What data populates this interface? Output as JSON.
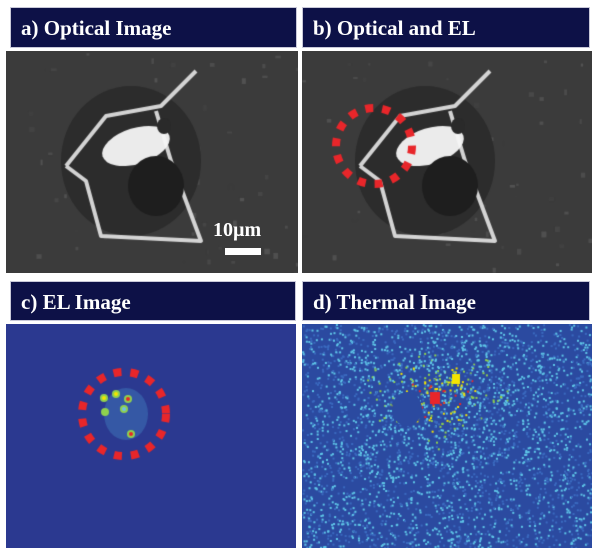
{
  "panels": [
    {
      "id": "a",
      "title": "a)  Optical Image"
    },
    {
      "id": "b",
      "title": "b)  Optical and EL"
    },
    {
      "id": "c",
      "title": "c)  EL Image"
    },
    {
      "id": "d",
      "title": "d)  Thermal Image"
    }
  ],
  "scale_bar": {
    "label": "10µm"
  },
  "colors": {
    "header_bg": "#0d1147",
    "el_background": "#2b3990",
    "marker_circle": "#e8262a",
    "optical_bg": "#3a3a3a"
  }
}
